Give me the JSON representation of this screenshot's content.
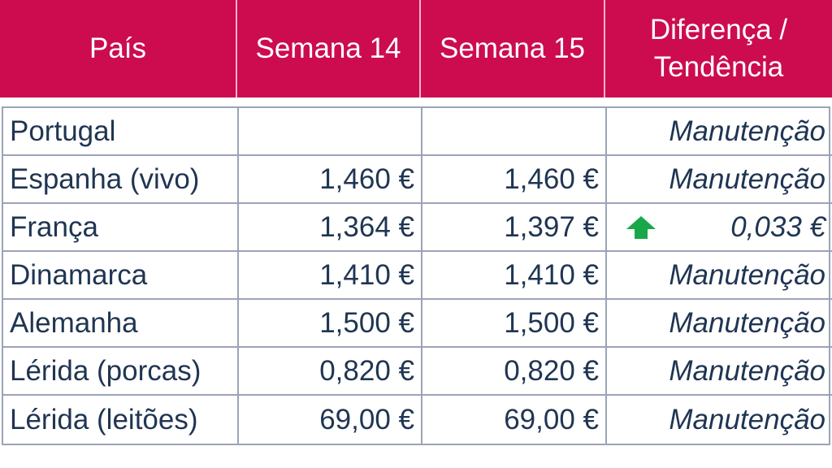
{
  "header": {
    "col_country": "País",
    "col_week14": "Semana 14",
    "col_week15": "Semana 15",
    "col_diff_line1": "Diferença /",
    "col_diff_line2": "Tendência"
  },
  "rows": [
    {
      "country": "Portugal",
      "week14": "",
      "week15": "",
      "trend": "Manutenção"
    },
    {
      "country": "Espanha (vivo)",
      "week14": "1,460 €",
      "week15": "1,460 €",
      "trend": "Manutenção"
    },
    {
      "country": "França",
      "week14": "1,364 €",
      "week15": "1,397 €",
      "trend": "0,033 €",
      "trend_icon": "up-arrow-icon"
    },
    {
      "country": "Dinamarca",
      "week14": "1,410 €",
      "week15": "1,410 €",
      "trend": "Manutenção"
    },
    {
      "country": "Alemanha",
      "week14": "1,500 €",
      "week15": "1,500 €",
      "trend": "Manutenção"
    },
    {
      "country": "Lérida (porcas)",
      "week14": "0,820 €",
      "week15": "0,820 €",
      "trend": "Manutenção"
    },
    {
      "country": "Lérida (leitões)",
      "week14": "69,00 €",
      "week15": "69,00 €",
      "trend": "Manutenção"
    }
  ],
  "colors": {
    "header_bg": "#cc0c4e",
    "text": "#1f3552",
    "grid": "#9aa4b8",
    "arrow": "#18a84a"
  }
}
